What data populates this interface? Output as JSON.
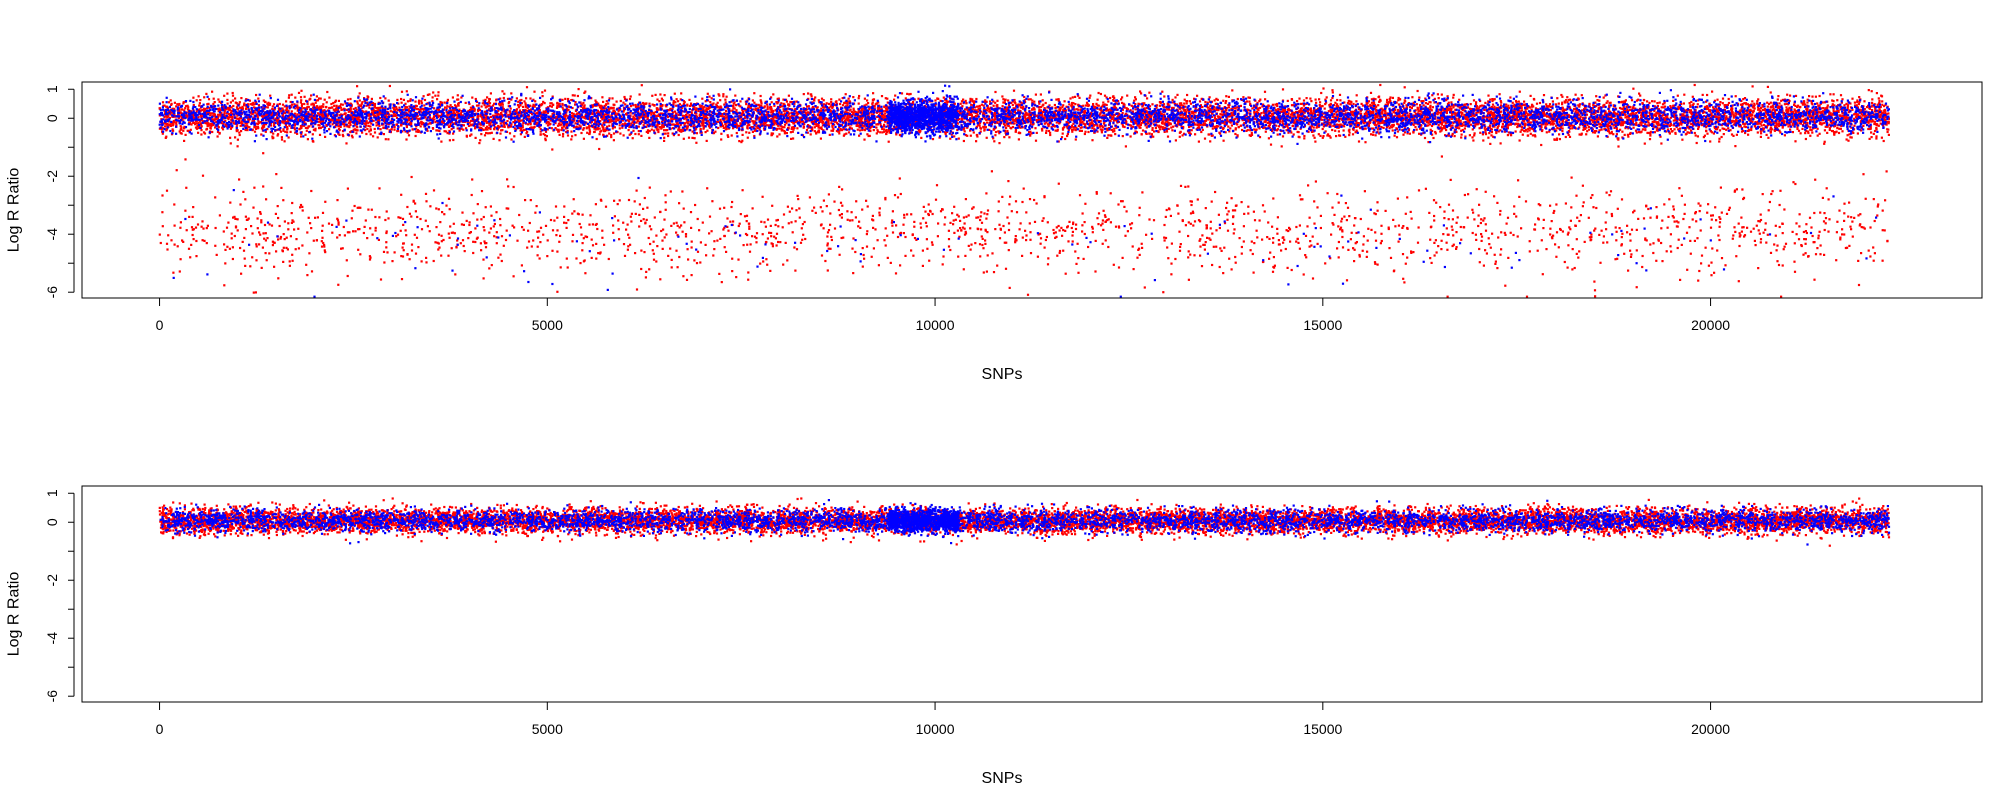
{
  "colors": {
    "series_a": "#ff0000",
    "series_b": "#0000ff",
    "axis": "#000000",
    "background": "#ffffff"
  },
  "chart_data": [
    {
      "type": "scatter",
      "panel": "top",
      "title": "",
      "xlabel": "SNPs",
      "ylabel": "Log R Ratio",
      "xlim": [
        -1000,
        23500
      ],
      "ylim": [
        -6.2,
        1.25
      ],
      "x_ticks": [
        0,
        5000,
        10000,
        15000,
        20000
      ],
      "y_ticks": [
        1,
        0,
        -2,
        -4,
        -6
      ],
      "grid": false,
      "legend": "none",
      "n_snps": 22300,
      "series": [
        {
          "color_key": "series_a",
          "clusters": [
            {
              "x_range": [
                0,
                22300
              ],
              "y_center": 0.05,
              "y_spread": 0.32,
              "count": 11000
            },
            {
              "x_range": [
                0,
                22300
              ],
              "y_center": -3.9,
              "y_spread": 0.75,
              "count": 1900
            }
          ]
        },
        {
          "color_key": "series_b",
          "clusters": [
            {
              "x_range": [
                0,
                22300
              ],
              "y_center": 0.05,
              "y_spread": 0.28,
              "count": 5500
            },
            {
              "x_range": [
                9400,
                10300
              ],
              "y_center": 0.05,
              "y_spread": 0.28,
              "count": 900
            },
            {
              "x_range": [
                0,
                22300
              ],
              "y_center": -4.2,
              "y_spread": 0.8,
              "count": 110
            }
          ]
        }
      ]
    },
    {
      "type": "scatter",
      "panel": "bottom",
      "title": "",
      "xlabel": "SNPs",
      "ylabel": "Log R Ratio",
      "xlim": [
        -1000,
        23500
      ],
      "ylim": [
        -6.2,
        1.25
      ],
      "x_ticks": [
        0,
        5000,
        10000,
        15000,
        20000
      ],
      "y_ticks": [
        1,
        0,
        -2,
        -4,
        -6
      ],
      "grid": false,
      "legend": "none",
      "n_snps": 22300,
      "series": [
        {
          "color_key": "series_a",
          "clusters": [
            {
              "x_range": [
                0,
                22300
              ],
              "y_center": 0.05,
              "y_spread": 0.22,
              "count": 11000
            }
          ]
        },
        {
          "color_key": "series_b",
          "clusters": [
            {
              "x_range": [
                0,
                22300
              ],
              "y_center": 0.05,
              "y_spread": 0.2,
              "count": 5500
            },
            {
              "x_range": [
                9400,
                10300
              ],
              "y_center": 0.05,
              "y_spread": 0.2,
              "count": 900
            }
          ]
        }
      ]
    }
  ]
}
